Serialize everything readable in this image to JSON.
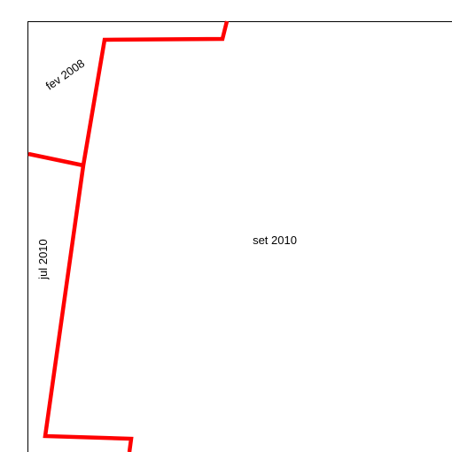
{
  "colors": {
    "boundary": "#ff0000",
    "frame": "#000000",
    "background": "#ffffff",
    "text": "#000000"
  },
  "labels": {
    "region_top_left": "fev 2008",
    "region_left": "jul 2010",
    "region_main": "set 2010"
  }
}
